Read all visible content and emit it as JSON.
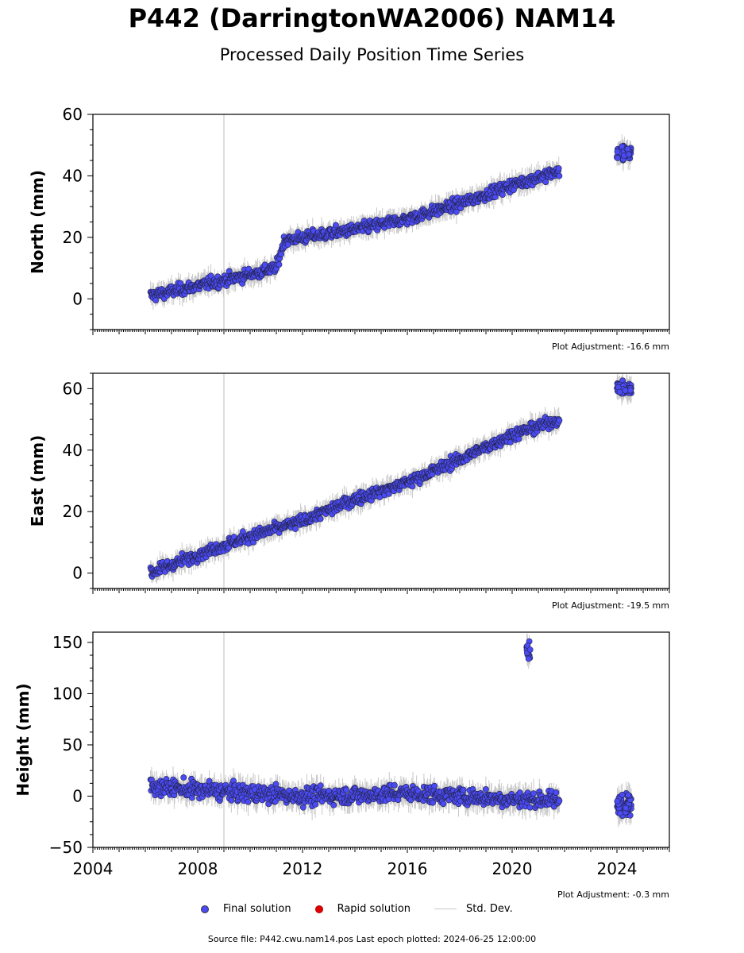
{
  "header": {
    "title": "P442 (DarringtonWA2006) NAM14",
    "subtitle": "Processed Daily Position Time Series"
  },
  "legend": {
    "final": "Final solution",
    "rapid": "Rapid solution",
    "stddev": "Std. Dev."
  },
  "footer": {
    "source": "Source file: P442.cwu.nam14.pos  Last epoch plotted: 2024-06-25 12:00:00"
  },
  "colors": {
    "final": "#4b4bf5",
    "rapid": "#e00000",
    "stddev": "#c8c8c8",
    "marker_edge": "#222244"
  },
  "chart_data": [
    {
      "type": "scatter",
      "panel": "north",
      "ylabel": "North (mm)",
      "ylim": [
        -10,
        60
      ],
      "yticks": [
        0,
        20,
        40,
        60
      ],
      "xlim": [
        2004,
        2026
      ],
      "xticks": [
        2004,
        2008,
        2012,
        2016,
        2020,
        2024
      ],
      "adjustment": "Plot Adjustment: -16.6 mm",
      "trend": [
        [
          2006.2,
          1
        ],
        [
          2009.0,
          6
        ],
        [
          2011.0,
          10
        ],
        [
          2011.3,
          19
        ],
        [
          2014,
          22.5
        ],
        [
          2016,
          26
        ],
        [
          2018,
          31
        ],
        [
          2020,
          37
        ],
        [
          2021.8,
          41.5
        ]
      ],
      "gap_2024": [
        2024.0,
        2024.55,
        47.5
      ],
      "outlier_line": {
        "x": 2009.0,
        "y0": -10,
        "y1": 60
      }
    },
    {
      "type": "scatter",
      "panel": "east",
      "ylabel": "East (mm)",
      "ylim": [
        -5,
        65
      ],
      "yticks": [
        0,
        20,
        40,
        60
      ],
      "xlim": [
        2004,
        2026
      ],
      "xticks": [
        2004,
        2008,
        2012,
        2016,
        2020,
        2024
      ],
      "adjustment": "Plot Adjustment: -19.5 mm",
      "trend": [
        [
          2006.2,
          0
        ],
        [
          2008,
          6
        ],
        [
          2010,
          12
        ],
        [
          2012,
          17
        ],
        [
          2014,
          24
        ],
        [
          2016,
          29.5
        ],
        [
          2018,
          37
        ],
        [
          2020,
          45
        ],
        [
          2021.8,
          50
        ]
      ],
      "gap_2024": [
        2024.0,
        2024.55,
        60
      ],
      "outlier_line": {
        "x": 2009.0,
        "y0": -5,
        "y1": 65
      }
    },
    {
      "type": "scatter",
      "panel": "height",
      "ylabel": "Height (mm)",
      "ylim": [
        -50,
        160
      ],
      "yticks": [
        -50,
        0,
        50,
        100,
        150
      ],
      "xlim": [
        2004,
        2026
      ],
      "xticks": [
        2004,
        2008,
        2012,
        2016,
        2020,
        2024
      ],
      "adjustment": "Plot Adjustment: -0.3 mm",
      "trend": [
        [
          2006.2,
          10
        ],
        [
          2008,
          6
        ],
        [
          2010,
          3
        ],
        [
          2012,
          0
        ],
        [
          2014,
          1
        ],
        [
          2016,
          3
        ],
        [
          2018,
          0
        ],
        [
          2020,
          -3
        ],
        [
          2021.8,
          -4
        ]
      ],
      "gap_2024": [
        2024.0,
        2024.55,
        -8
      ],
      "outlier_line": {
        "x": 2009.0,
        "y0": -50,
        "y1": 160
      },
      "spike": {
        "x": [
          2020.55,
          2020.7
        ],
        "y": [
          133,
          158
        ]
      }
    }
  ]
}
